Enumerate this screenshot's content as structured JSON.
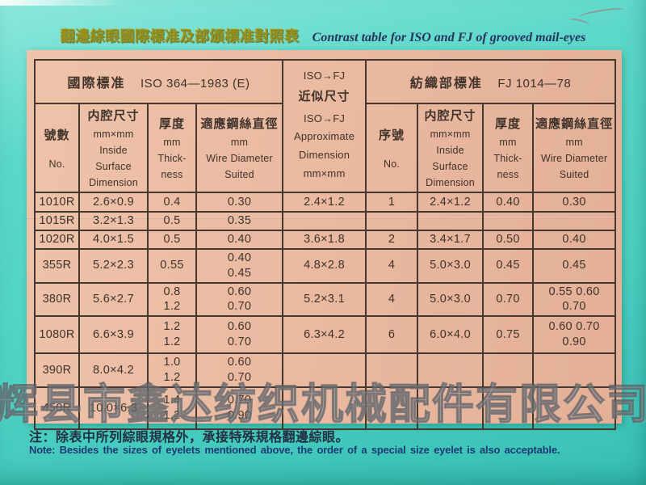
{
  "header": {
    "title_zh": "翻邊綜眼國際標准及部頒標准對照表",
    "title_en": "Contrast table for ISO and FJ of grooved mail-eyes"
  },
  "table": {
    "iso_section_zh": "國際標准",
    "iso_section_code": "ISO 364—1983 (E)",
    "fj_section_zh": "紡織部標准",
    "fj_section_code": "FJ 1014—78",
    "approx_header": {
      "top": "ISO→FJ",
      "zh": "近似尺寸",
      "rest": "ISO→FJ\nApproximate\nDimension\nmm×mm"
    },
    "iso_columns": {
      "no_zh": "號數",
      "no_en": "No.",
      "inside_zh": "内腔尺寸",
      "inside_sub": "mm×mm\nInside\nSurface\nDimension",
      "thick_zh": "厚度",
      "thick_sub": "mm\nThick-\nness",
      "wire_zh": "適應鋼絲直徑",
      "wire_sub": "mm\nWire Diameter\nSuited"
    },
    "fj_columns": {
      "no_zh": "序號",
      "no_en": "No.",
      "inside_zh": "内腔尺寸",
      "inside_sub": "mm×mm\nInside\nSurface\nDimension",
      "thick_zh": "厚度",
      "thick_sub": "mm\nThick-\nness",
      "wire_zh": "適應鋼絲直徑",
      "wire_sub": "mm\nWire Diameter\nSuited"
    },
    "rows": [
      [
        "1010R",
        "2.6×0.9",
        "0.4",
        "0.30",
        "2.4×1.2",
        "1",
        "2.4×1.2",
        "0.40",
        "0.30"
      ],
      [
        "1015R",
        "3.2×1.3",
        "0.5",
        "0.35",
        "",
        "",
        "",
        "",
        ""
      ],
      [
        "1020R",
        "4.0×1.5",
        "0.5",
        "0.40",
        "3.6×1.8",
        "2",
        "3.4×1.7",
        "0.50",
        "0.40"
      ],
      [
        "355R",
        "5.2×2.3",
        "0.55",
        "0.40\n0.45",
        "4.8×2.8",
        "4",
        "5.0×3.0",
        "0.45",
        "0.45"
      ],
      [
        "380R",
        "5.6×2.7",
        "0.8\n1.2",
        "0.60\n0.70",
        "5.2×3.1",
        "4",
        "5.0×3.0",
        "0.70",
        "0.55 0.60\n0.70"
      ],
      [
        "1080R",
        "6.6×3.9",
        "1.2\n1.2",
        "0.60\n0.70",
        "6.3×4.2",
        "6",
        "6.0×4.0",
        "0.75",
        "0.60 0.70\n0.90"
      ],
      [
        "390R",
        "8.0×4.2",
        "1.0\n1.2",
        "0.60\n0.70",
        "",
        "",
        "",
        "",
        ""
      ],
      [
        "450R",
        "10.0×6.3",
        "1.4\n1.2",
        "0.70\n0.90",
        "",
        "",
        "",
        "",
        ""
      ]
    ]
  },
  "note": {
    "zh": "注：除表中所列綜眼規格外，承接特殊規格翻邊綜眼。",
    "en": "Note: Besides the sizes of eyelets mentioned above, the order of a special size eyelet is also acceptable."
  },
  "watermark": "辉县市鑫达纺织机械配件有限公司",
  "colors": {
    "background_teal": "#4ed2c4",
    "paper_salmon": "#e9b89f",
    "grid_line": "#45392f",
    "title_yellow": "#98921b",
    "title_navy": "#26345c"
  }
}
